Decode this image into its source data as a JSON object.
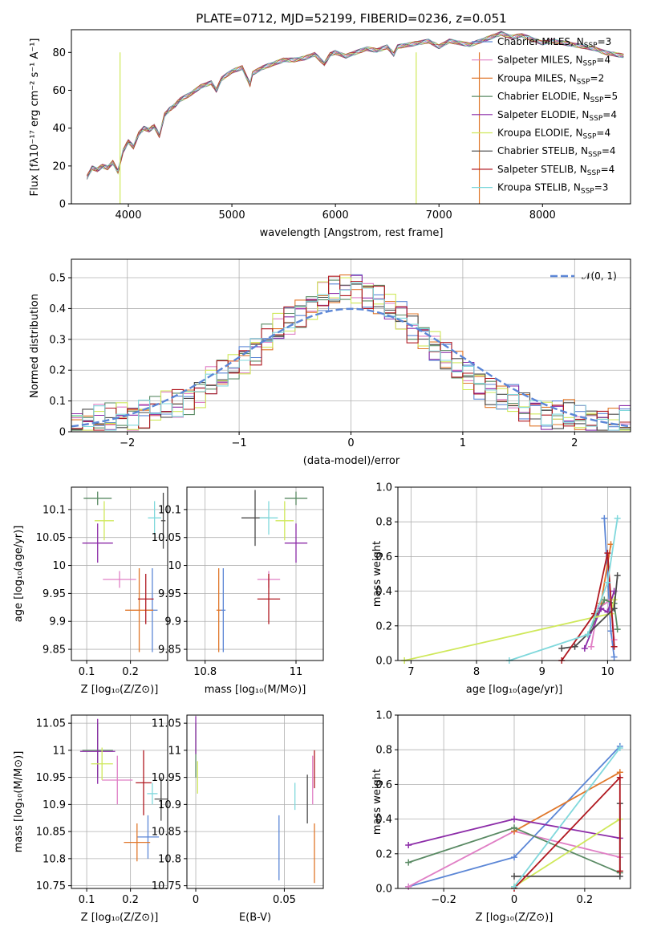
{
  "colors": [
    "#5b86d6",
    "#e07fc5",
    "#e0772a",
    "#5a8a64",
    "#8c2ca8",
    "#cfe85a",
    "#4a4a4a",
    "#b01820",
    "#80d8dc"
  ],
  "legend": [
    "Chabrier MILES, N_SSP=3",
    "Salpeter MILES, N_SSP=4",
    "Kroupa MILES, N_SSP=2",
    "Chabrier ELODIE, N_SSP=5",
    "Salpeter ELODIE, N_SSP=4",
    "Kroupa ELODIE, N_SSP=4",
    "Chabrier STELIB, N_SSP=4",
    "Salpeter STELIB, N_SSP=4",
    "Kroupa STELIB, N_SSP=3"
  ],
  "chart_data": [
    {
      "type": "line",
      "title": "PLATE=0712, MJD=52199, FIBERID=0236, z=0.051",
      "xlabel": "wavelength [Angstrom, rest frame]",
      "ylabel": "Flux [f_λ 10^-17 erg cm^-2 s^-1 A^-1]",
      "xlim": [
        3450,
        8850
      ],
      "ylim": [
        0,
        92
      ],
      "xticks": [
        4000,
        5000,
        6000,
        7000,
        8000
      ],
      "yticks": [
        0,
        20,
        40,
        60,
        80
      ],
      "spectrum": {
        "x": [
          3600,
          3650,
          3700,
          3750,
          3800,
          3850,
          3900,
          3950,
          4000,
          4050,
          4100,
          4150,
          4200,
          4250,
          4300,
          4350,
          4400,
          4450,
          4500,
          4600,
          4700,
          4800,
          4850,
          4900,
          5000,
          5100,
          5175,
          5200,
          5300,
          5400,
          5500,
          5600,
          5700,
          5800,
          5893,
          5950,
          6000,
          6100,
          6200,
          6300,
          6400,
          6500,
          6563,
          6600,
          6700,
          6800,
          6900,
          7000,
          7100,
          7200,
          7300,
          7400,
          7500,
          7600,
          7700,
          7800,
          7900,
          8000,
          8100,
          8200,
          8300,
          8400,
          8500,
          8600,
          8700,
          8800
        ],
        "y": [
          14,
          19,
          18,
          20,
          19,
          22,
          17,
          28,
          33,
          30,
          37,
          40,
          39,
          41,
          36,
          47,
          50,
          52,
          55,
          58,
          62,
          64,
          60,
          66,
          70,
          72,
          63,
          69,
          72,
          74,
          76,
          76,
          77,
          79,
          74,
          79,
          80,
          78,
          80,
          82,
          81,
          83,
          79,
          83,
          84,
          85,
          86,
          83,
          86,
          85,
          84,
          86,
          88,
          90,
          88,
          89,
          87,
          85,
          86,
          85,
          84,
          83,
          82,
          80,
          79,
          78
        ]
      },
      "drops": [
        {
          "series": 5,
          "x": 3920
        },
        {
          "series": 5,
          "x": 6780
        },
        {
          "series": 2,
          "x": 7390
        }
      ],
      "legend_placement": "right"
    },
    {
      "type": "bar",
      "xlabel": "(data-model)/error",
      "ylabel": "Normed distribution",
      "xlim": [
        -2.5,
        2.5
      ],
      "ylim": [
        0,
        0.56
      ],
      "xticks": [
        -2,
        -1,
        0,
        1,
        2
      ],
      "yticks": [
        0,
        0.1,
        0.2,
        0.3,
        0.4,
        0.5
      ],
      "bins": [
        -2.5,
        -2.4,
        -2.3,
        -2.2,
        -2.1,
        -2.0,
        -1.9,
        -1.8,
        -1.7,
        -1.6,
        -1.5,
        -1.4,
        -1.3,
        -1.2,
        -1.1,
        -1.0,
        -0.9,
        -0.8,
        -0.7,
        -0.6,
        -0.5,
        -0.4,
        -0.3,
        -0.2,
        -0.1,
        0.0,
        0.1,
        0.2,
        0.3,
        0.4,
        0.5,
        0.6,
        0.7,
        0.8,
        0.9,
        1.0,
        1.1,
        1.2,
        1.3,
        1.4,
        1.5,
        1.6,
        1.7,
        1.8,
        1.9,
        2.0,
        2.1,
        2.2,
        2.3,
        2.4
      ],
      "histogram_base": [
        0.03,
        0.03,
        0.04,
        0.04,
        0.05,
        0.05,
        0.06,
        0.07,
        0.08,
        0.09,
        0.11,
        0.13,
        0.16,
        0.18,
        0.21,
        0.24,
        0.27,
        0.3,
        0.33,
        0.36,
        0.39,
        0.41,
        0.44,
        0.45,
        0.47,
        0.47,
        0.45,
        0.43,
        0.4,
        0.37,
        0.34,
        0.31,
        0.28,
        0.24,
        0.21,
        0.18,
        0.16,
        0.13,
        0.11,
        0.1,
        0.08,
        0.07,
        0.06,
        0.05,
        0.05,
        0.04,
        0.04,
        0.03,
        0.03,
        0.03
      ],
      "normal_curve_label": "N(0,1)",
      "legend_placement": "top-right"
    },
    {
      "type": "scatter",
      "name": "age_vs_Z",
      "xlabel": "Z [log10(Z/Z_sun)]",
      "ylabel": "age  [log10(age/yr)]",
      "xlim": [
        0.065,
        0.285
      ],
      "ylim": [
        9.83,
        10.14
      ],
      "xticks": [
        0.1,
        0.2
      ],
      "yticks": [
        9.85,
        9.9,
        9.95,
        10.0,
        10.05,
        10.1
      ],
      "points": [
        {
          "s": 0,
          "x": 0.25,
          "y": 9.92,
          "ex": 0.012,
          "ey": 0.075
        },
        {
          "s": 1,
          "x": 0.175,
          "y": 9.975,
          "ex": 0.038,
          "ey": 0.015
        },
        {
          "s": 2,
          "x": 0.22,
          "y": 9.92,
          "ex": 0.032,
          "ey": 0.075
        },
        {
          "s": 3,
          "x": 0.125,
          "y": 10.12,
          "ex": 0.032,
          "ey": 0.012
        },
        {
          "s": 4,
          "x": 0.125,
          "y": 10.04,
          "ex": 0.035,
          "ey": 0.035
        },
        {
          "s": 5,
          "x": 0.14,
          "y": 10.08,
          "ex": 0.022,
          "ey": 0.035
        },
        {
          "s": 6,
          "x": 0.275,
          "y": 10.08,
          "ex": 0.005,
          "ey": 0.05
        },
        {
          "s": 7,
          "x": 0.235,
          "y": 9.94,
          "ex": 0.018,
          "ey": 0.045
        },
        {
          "s": 8,
          "x": 0.255,
          "y": 10.085,
          "ex": 0.015,
          "ey": 0.03
        }
      ]
    },
    {
      "type": "scatter",
      "name": "age_vs_mass",
      "xlabel": "mass [log10(M/M_sun)]",
      "ylabel": "",
      "xlim": [
        10.76,
        11.06
      ],
      "ylim": [
        9.83,
        10.14
      ],
      "xticks": [
        10.8,
        11.0
      ],
      "yticks": [
        9.85,
        9.9,
        9.95,
        10.0,
        10.05,
        10.1
      ],
      "points": [
        {
          "s": 0,
          "x": 10.84,
          "y": 9.92,
          "ex": 0.005,
          "ey": 0.075
        },
        {
          "s": 1,
          "x": 10.94,
          "y": 9.975,
          "ex": 0.025,
          "ey": 0.015
        },
        {
          "s": 2,
          "x": 10.83,
          "y": 9.92,
          "ex": 0.005,
          "ey": 0.075
        },
        {
          "s": 3,
          "x": 11.0,
          "y": 10.12,
          "ex": 0.025,
          "ey": 0.012
        },
        {
          "s": 4,
          "x": 11.0,
          "y": 10.04,
          "ex": 0.025,
          "ey": 0.035
        },
        {
          "s": 5,
          "x": 10.975,
          "y": 10.08,
          "ex": 0.02,
          "ey": 0.035
        },
        {
          "s": 6,
          "x": 10.91,
          "y": 10.085,
          "ex": 0.03,
          "ey": 0.05
        },
        {
          "s": 7,
          "x": 10.94,
          "y": 9.94,
          "ex": 0.025,
          "ey": 0.045
        },
        {
          "s": 8,
          "x": 10.94,
          "y": 10.085,
          "ex": 0.02,
          "ey": 0.03
        }
      ]
    },
    {
      "type": "line",
      "name": "mass_weight_vs_age",
      "xlabel": "age  [log10(age/yr)]",
      "ylabel": "mass weight",
      "xlim": [
        6.8,
        10.35
      ],
      "ylim": [
        0,
        1.0
      ],
      "xticks": [
        7,
        8,
        9,
        10
      ],
      "yticks": [
        0,
        0.2,
        0.4,
        0.6,
        0.8,
        1.0
      ],
      "series": [
        {
          "s": 0,
          "x": [
            9.95,
            10.05,
            10.1
          ],
          "y": [
            0.82,
            0.17,
            0.02
          ]
        },
        {
          "s": 1,
          "x": [
            9.75,
            9.85,
            10.05,
            10.1
          ],
          "y": [
            0.08,
            0.3,
            0.35,
            0.12
          ]
        },
        {
          "s": 2,
          "x": [
            9.9,
            10.05
          ],
          "y": [
            0.33,
            0.67
          ]
        },
        {
          "s": 3,
          "x": [
            9.7,
            9.95,
            10.1,
            10.15
          ],
          "y": [
            0.15,
            0.35,
            0.33,
            0.18
          ]
        },
        {
          "s": 4,
          "x": [
            9.65,
            9.9,
            10.0,
            10.1
          ],
          "y": [
            0.07,
            0.3,
            0.28,
            0.4
          ]
        },
        {
          "s": 5,
          "x": [
            6.9,
            9.8,
            10.05,
            10.1
          ],
          "y": [
            0.0,
            0.25,
            0.27,
            0.35
          ]
        },
        {
          "s": 6,
          "x": [
            9.3,
            9.5,
            10.1,
            10.15
          ],
          "y": [
            0.07,
            0.08,
            0.3,
            0.49
          ]
        },
        {
          "s": 7,
          "x": [
            9.3,
            9.8,
            10.0,
            10.1
          ],
          "y": [
            0.0,
            0.27,
            0.62,
            0.08
          ]
        },
        {
          "s": 8,
          "x": [
            8.5,
            9.7,
            10.0,
            10.15
          ],
          "y": [
            0.0,
            0.15,
            0.45,
            0.82
          ]
        }
      ]
    },
    {
      "type": "scatter",
      "name": "mass_vs_Z",
      "xlabel": "Z [log10(Z/Z_sun)]",
      "ylabel": "mass [log10(M/M_sun)]",
      "xlim": [
        0.065,
        0.285
      ],
      "ylim": [
        10.745,
        11.065
      ],
      "xticks": [
        0.1,
        0.2
      ],
      "yticks": [
        10.75,
        10.8,
        10.85,
        10.9,
        10.95,
        11.0,
        11.05
      ],
      "points": [
        {
          "s": 0,
          "x": 0.24,
          "y": 10.84,
          "ex": 0.025,
          "ey": 0.04
        },
        {
          "s": 1,
          "x": 0.17,
          "y": 10.945,
          "ex": 0.035,
          "ey": 0.045
        },
        {
          "s": 2,
          "x": 0.215,
          "y": 10.83,
          "ex": 0.03,
          "ey": 0.035
        },
        {
          "s": 3,
          "x": 0.125,
          "y": 11.0,
          "ex": 0.035,
          "ey": 0.05
        },
        {
          "s": 4,
          "x": 0.125,
          "y": 10.998,
          "ex": 0.04,
          "ey": 0.06
        },
        {
          "s": 5,
          "x": 0.135,
          "y": 10.975,
          "ex": 0.025,
          "ey": 0.03
        },
        {
          "s": 6,
          "x": 0.27,
          "y": 10.91,
          "ex": 0.015,
          "ey": 0.04
        },
        {
          "s": 7,
          "x": 0.23,
          "y": 10.94,
          "ex": 0.018,
          "ey": 0.06
        },
        {
          "s": 8,
          "x": 0.25,
          "y": 10.92,
          "ex": 0.012,
          "ey": 0.02
        }
      ]
    },
    {
      "type": "scatter",
      "name": "mass_vs_EBV",
      "xlabel": "E(B-V)",
      "ylabel": "",
      "xlim": [
        -0.005,
        0.072
      ],
      "ylim": [
        10.745,
        11.065
      ],
      "xticks": [
        0.0,
        0.05
      ],
      "yticks": [
        10.75,
        10.8,
        10.85,
        10.9,
        10.95,
        11.0,
        11.05
      ],
      "points": [
        {
          "s": 0,
          "x": 0.047,
          "y": 10.82,
          "ex": 0,
          "ey": 0.06
        },
        {
          "s": 1,
          "x": 0.066,
          "y": 10.945,
          "ex": 0,
          "ey": 0.045
        },
        {
          "s": 2,
          "x": 0.067,
          "y": 10.81,
          "ex": 0,
          "ey": 0.055
        },
        {
          "s": 3,
          "x": 0.0,
          "y": 11.0,
          "ex": 0,
          "ey": 0.05
        },
        {
          "s": 4,
          "x": 0.0,
          "y": 11.028,
          "ex": 0,
          "ey": 0.035
        },
        {
          "s": 5,
          "x": 0.001,
          "y": 10.95,
          "ex": 0,
          "ey": 0.03
        },
        {
          "s": 6,
          "x": 0.063,
          "y": 10.91,
          "ex": 0,
          "ey": 0.045
        },
        {
          "s": 7,
          "x": 0.067,
          "y": 10.965,
          "ex": 0,
          "ey": 0.035
        },
        {
          "s": 8,
          "x": 0.056,
          "y": 10.915,
          "ex": 0,
          "ey": 0.025
        }
      ]
    },
    {
      "type": "line",
      "name": "mass_weight_vs_Z",
      "xlabel": "Z [log10(Z/Z_sun)]",
      "ylabel": "mass weight",
      "xlim": [
        -0.33,
        0.33
      ],
      "ylim": [
        0,
        1.0
      ],
      "xticks": [
        -0.2,
        0.0,
        0.2
      ],
      "yticks": [
        0,
        0.2,
        0.4,
        0.6,
        0.8,
        1.0
      ],
      "series": [
        {
          "s": 0,
          "x": [
            -0.3,
            0.0,
            0.3
          ],
          "y": [
            0.01,
            0.18,
            0.82
          ]
        },
        {
          "s": 1,
          "x": [
            -0.3,
            0.0,
            0.3
          ],
          "y": [
            0.01,
            0.33,
            0.18
          ]
        },
        {
          "s": 2,
          "x": [
            0.0,
            0.3
          ],
          "y": [
            0.33,
            0.67
          ]
        },
        {
          "s": 3,
          "x": [
            -0.3,
            0.0,
            0.3
          ],
          "y": [
            0.15,
            0.35,
            0.09
          ]
        },
        {
          "s": 4,
          "x": [
            -0.3,
            0.0,
            0.3
          ],
          "y": [
            0.25,
            0.4,
            0.29
          ]
        },
        {
          "s": 5,
          "x": [
            0.0,
            0.3
          ],
          "y": [
            0.01,
            0.4
          ]
        },
        {
          "s": 6,
          "x": [
            0.0,
            0.3,
            0.3
          ],
          "y": [
            0.07,
            0.07,
            0.49
          ]
        },
        {
          "s": 7,
          "x": [
            0.0,
            0.3,
            0.3
          ],
          "y": [
            0.0,
            0.64,
            0.1
          ]
        },
        {
          "s": 8,
          "x": [
            0.0,
            0.3
          ],
          "y": [
            0.01,
            0.81
          ]
        }
      ]
    }
  ]
}
